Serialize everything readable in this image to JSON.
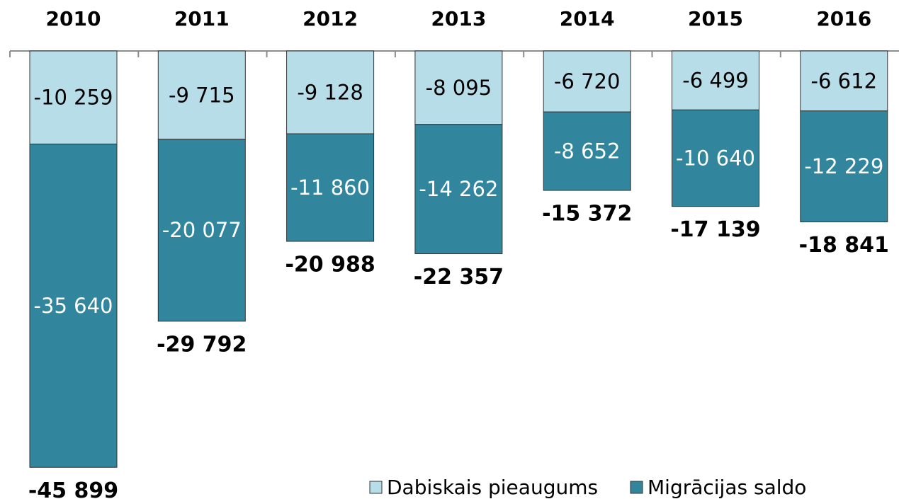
{
  "chart_data": {
    "type": "stacked-bar",
    "categories": [
      "2010",
      "2011",
      "2012",
      "2013",
      "2014",
      "2015",
      "2016"
    ],
    "series": [
      {
        "name": "Dabiskais pieaugums",
        "color": "#b7dde8",
        "values": [
          -10259,
          -9715,
          -9128,
          -8095,
          -6720,
          -6499,
          -6612
        ],
        "value_labels": [
          "-10 259",
          "-9 715",
          "-9 128",
          "-8 095",
          "-6 720",
          "-6 499",
          "-6 612"
        ]
      },
      {
        "name": "Migrācijas saldo",
        "color": "#31859c",
        "values": [
          -35640,
          -20077,
          -11860,
          -14262,
          -8652,
          -10640,
          -12229
        ],
        "value_labels": [
          "-35 640",
          "-20 077",
          "-11 860",
          "-14 262",
          "-8 652",
          "-10 640",
          "-12 229"
        ]
      }
    ],
    "totals": {
      "values": [
        -45899,
        -29792,
        -20988,
        -22357,
        -15372,
        -17139,
        -18841
      ],
      "value_labels": [
        "-45 899",
        "-29 792",
        "-20 988",
        "-22 357",
        "-15 372",
        "-17 139",
        "-18 841"
      ]
    },
    "ylim": [
      -49000,
      0
    ],
    "legend": "bottom"
  }
}
